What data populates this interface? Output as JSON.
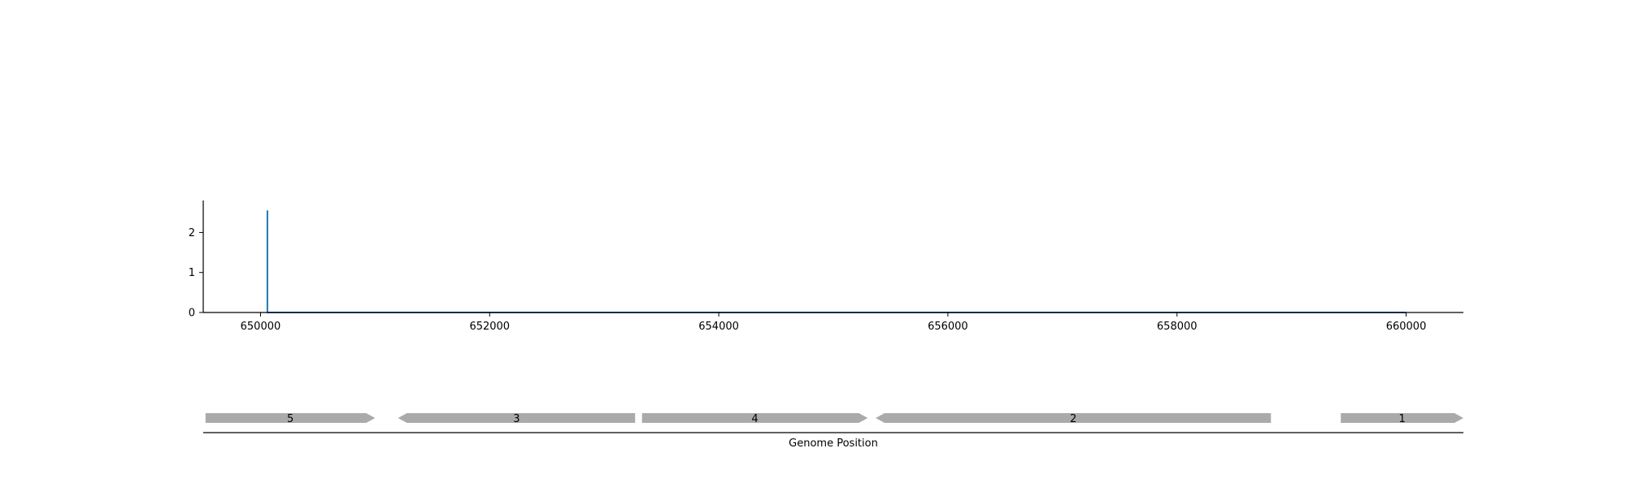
{
  "chart_data": [
    {
      "type": "line",
      "title": "",
      "xlabel": "",
      "ylabel": "",
      "xlim": [
        649500,
        660500
      ],
      "ylim": [
        0,
        2.8
      ],
      "xticks": [
        650000,
        652000,
        654000,
        656000,
        658000,
        660000
      ],
      "xtick_labels": [
        "650000",
        "652000",
        "654000",
        "656000",
        "658000",
        "660000"
      ],
      "yticks": [
        0,
        1,
        2
      ],
      "ytick_labels": [
        "0",
        "1",
        "2"
      ],
      "grid": false,
      "series": [
        {
          "color": "#1f77b4",
          "x": [
            650060,
            650060,
            650060,
            660000
          ],
          "y": [
            0,
            2.55,
            0,
            0
          ]
        }
      ]
    },
    {
      "type": "gene-track",
      "xlabel": "Genome Position",
      "xlim": [
        649500,
        660500
      ],
      "gene_color": "#aaaaaa",
      "genes": [
        {
          "label": "5",
          "start": 649520,
          "end": 651000,
          "strand": "+"
        },
        {
          "label": "3",
          "start": 651200,
          "end": 653270,
          "strand": "-"
        },
        {
          "label": "4",
          "start": 653330,
          "end": 655300,
          "strand": "+"
        },
        {
          "label": "2",
          "start": 655370,
          "end": 658820,
          "strand": "-"
        },
        {
          "label": "1",
          "start": 659430,
          "end": 660500,
          "strand": "+"
        }
      ]
    }
  ]
}
